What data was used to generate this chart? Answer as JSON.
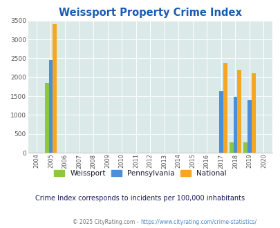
{
  "title": "Weissport Property Crime Index",
  "years": [
    2004,
    2005,
    2006,
    2007,
    2008,
    2009,
    2010,
    2011,
    2012,
    2013,
    2014,
    2015,
    2016,
    2017,
    2018,
    2019,
    2020
  ],
  "weissport": [
    0,
    1850,
    0,
    0,
    0,
    0,
    0,
    0,
    0,
    0,
    0,
    0,
    0,
    0,
    270,
    270,
    0
  ],
  "pennsylvania": [
    0,
    2460,
    0,
    0,
    0,
    0,
    0,
    0,
    0,
    0,
    0,
    0,
    0,
    1630,
    1490,
    1400,
    0
  ],
  "national": [
    0,
    3400,
    0,
    0,
    0,
    0,
    0,
    0,
    0,
    0,
    0,
    0,
    0,
    2370,
    2190,
    2110,
    0
  ],
  "weissport_color": "#8DC63F",
  "pennsylvania_color": "#4A90D9",
  "national_color": "#F5A623",
  "bg_color": "#dce9e9",
  "title_color": "#1a5cb0",
  "ylim": [
    0,
    3500
  ],
  "yticks": [
    0,
    500,
    1000,
    1500,
    2000,
    2500,
    3000,
    3500
  ],
  "subtitle": "Crime Index corresponds to incidents per 100,000 inhabitants",
  "footer_text": "© 2025 CityRating.com - ",
  "footer_url": "https://www.cityrating.com/crime-statistics/",
  "bar_width": 0.28,
  "legend_labels": [
    "Weissport",
    "Pennsylvania",
    "National"
  ],
  "legend_text_color": "#1a1a2e",
  "subtitle_color": "#1a1a5e"
}
